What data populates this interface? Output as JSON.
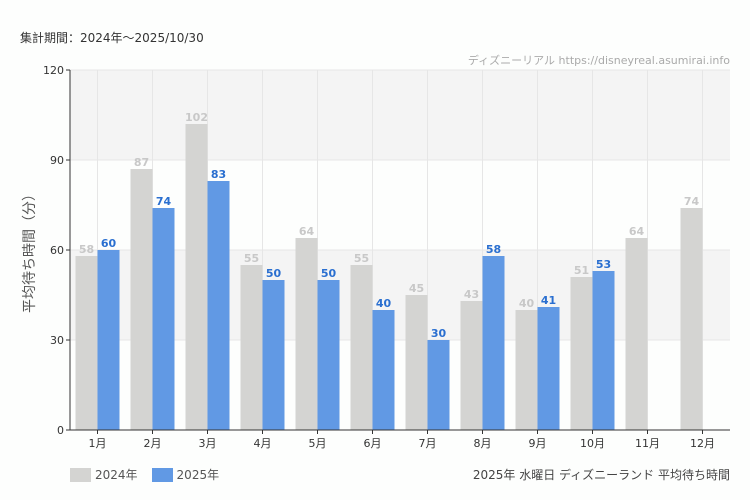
{
  "header": {
    "period": "集計期間：2024年～2025/10/30",
    "credit": "ディズニーリアル https://disneyreal.asumirai.info"
  },
  "caption": "2025年 水曜日 ディズニーランド 平均待ち時間",
  "chart_data": {
    "type": "bar",
    "title": "",
    "ylabel": "平均待ち時間（分）",
    "xlabel": "",
    "ylim": [
      0,
      120
    ],
    "yticks": [
      0,
      30,
      60,
      90,
      120
    ],
    "grid": true,
    "legend_placement": "bottom-left",
    "categories": [
      "1月",
      "2月",
      "3月",
      "4月",
      "5月",
      "6月",
      "7月",
      "8月",
      "9月",
      "10月",
      "11月",
      "12月"
    ],
    "series": [
      {
        "name": "2024年",
        "color": "#d4d4d2",
        "label_color": "#c8c8c8",
        "values": [
          58,
          87,
          102,
          55,
          64,
          55,
          45,
          43,
          40,
          51,
          64,
          74
        ]
      },
      {
        "name": "2025年",
        "color": "#6199e4",
        "label_color": "#2a6fd0",
        "values": [
          60,
          74,
          83,
          50,
          50,
          40,
          30,
          58,
          41,
          53,
          null,
          null
        ]
      }
    ]
  }
}
